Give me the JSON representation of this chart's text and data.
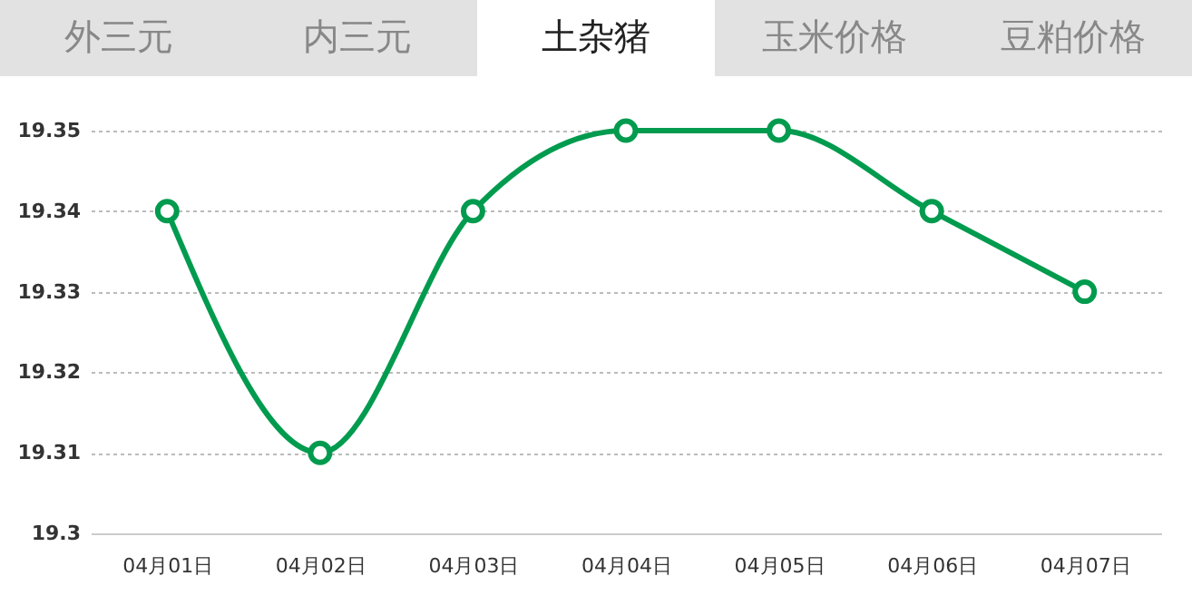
{
  "chart_data": {
    "type": "line",
    "title": "土杂猪",
    "annotations": [
      "外三元",
      "内三元",
      "玉米价格",
      "豆粕价格"
    ],
    "categories": [
      "04月01日",
      "04月02日",
      "04月03日",
      "04月04日",
      "04月05日",
      "04月06日",
      "04月07日"
    ],
    "series": [
      {
        "color": "#009b4e",
        "values": [
          19.34,
          19.31,
          19.34,
          19.35,
          19.35,
          19.34,
          19.33
        ]
      }
    ],
    "ylim": [
      19.3,
      19.35
    ],
    "yticks": [
      19.3,
      19.31,
      19.32,
      19.33,
      19.34,
      19.35
    ],
    "grid": "y",
    "marker": "circle",
    "line_style": "solid"
  }
}
